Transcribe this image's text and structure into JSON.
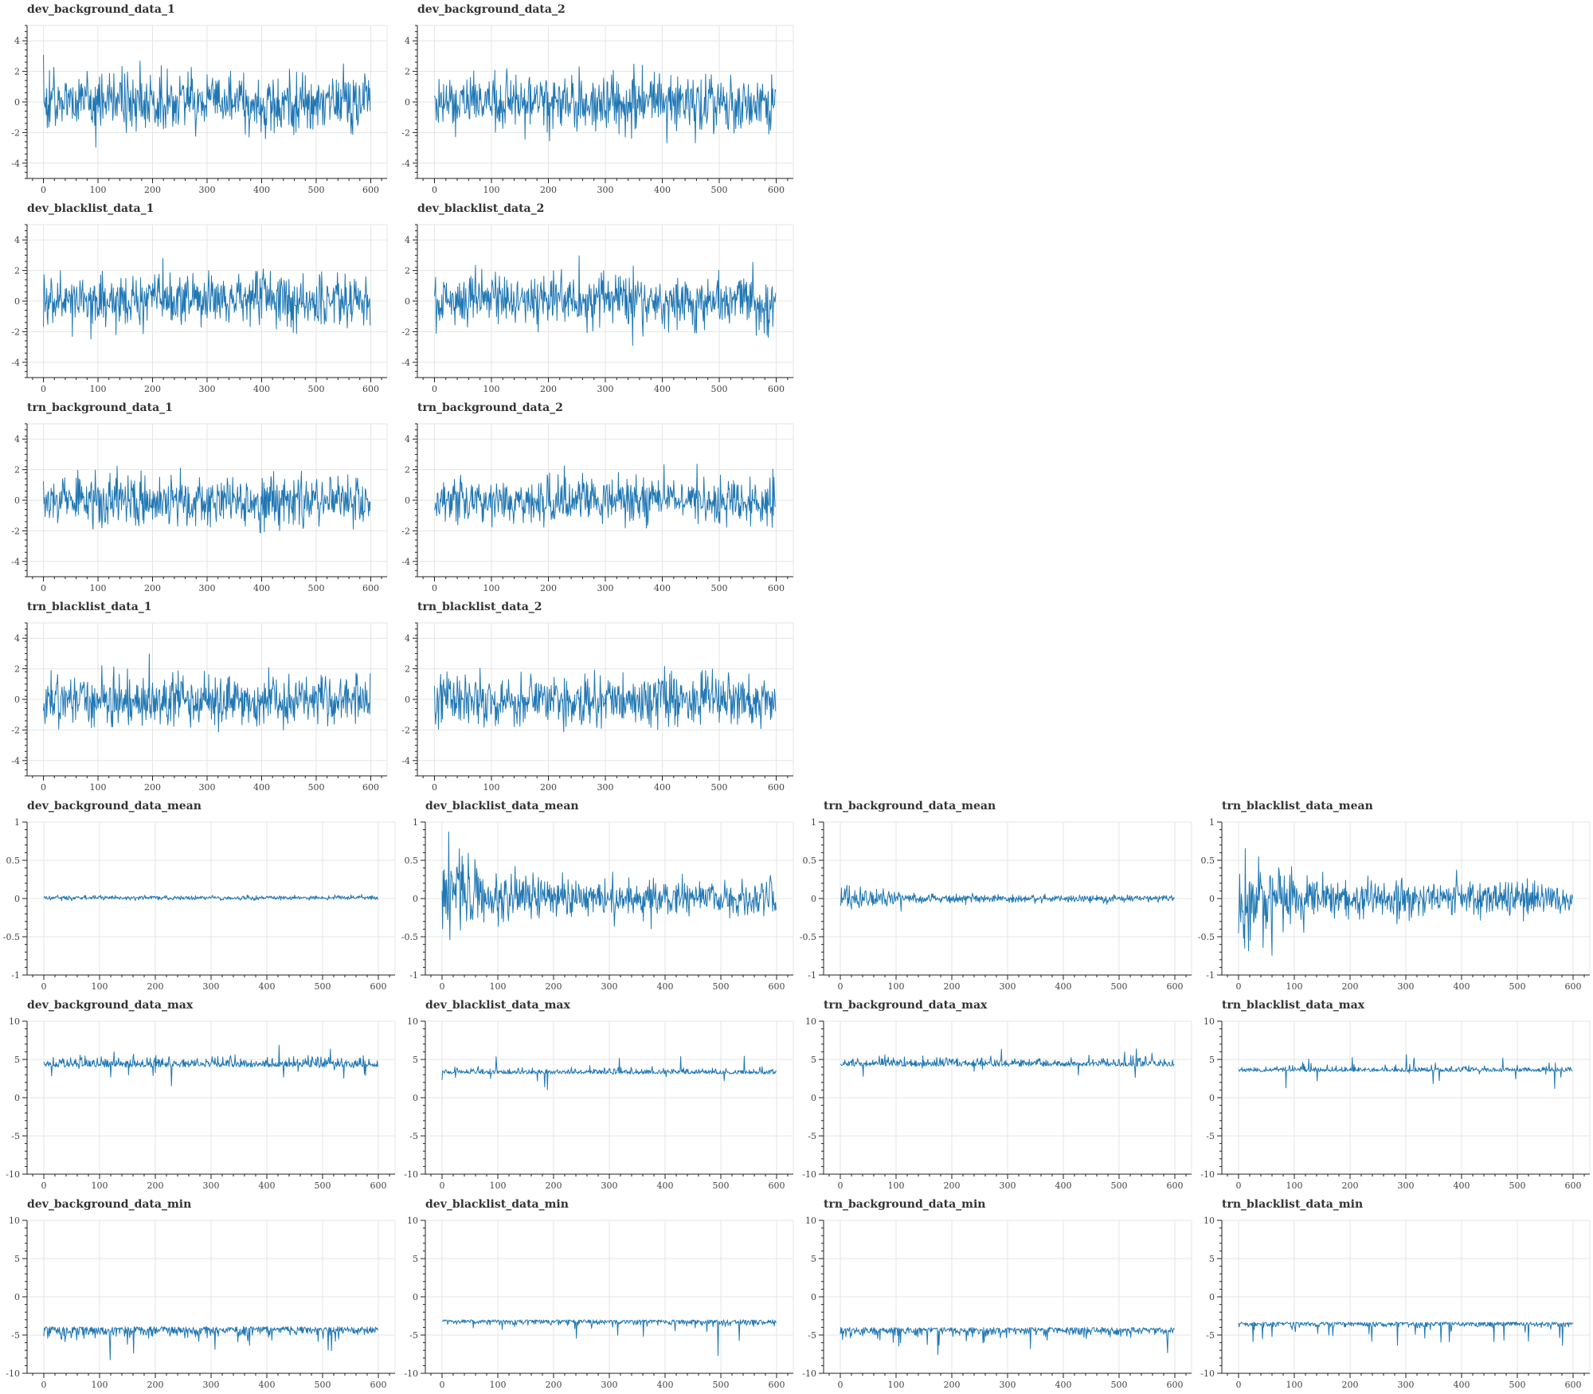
{
  "colors": {
    "series": "#1f77b4",
    "grid": "#e5e5e5",
    "axis": "#222222",
    "title": "#333333"
  },
  "chart_data": [
    {
      "id": "p0",
      "type": "line",
      "title": "dev_background_data_1",
      "xlim": [
        -30,
        630
      ],
      "ylim": [
        -5,
        5
      ],
      "xticks": [
        0,
        100,
        200,
        300,
        400,
        500,
        600
      ],
      "yticks": [
        -4,
        -2,
        0,
        2,
        4
      ],
      "generator": {
        "seed": 11,
        "base": 0,
        "sigma": 0.95,
        "n": 600
      },
      "grid": true
    },
    {
      "id": "p1",
      "type": "line",
      "title": "dev_background_data_2",
      "xlim": [
        -30,
        630
      ],
      "ylim": [
        -5,
        5
      ],
      "xticks": [
        0,
        100,
        200,
        300,
        400,
        500,
        600
      ],
      "yticks": [
        -4,
        -2,
        0,
        2,
        4
      ],
      "generator": {
        "seed": 12,
        "base": 0,
        "sigma": 0.9,
        "n": 600
      },
      "grid": true
    },
    {
      "id": "p2",
      "type": "line",
      "title": "dev_blacklist_data_1",
      "xlim": [
        -30,
        630
      ],
      "ylim": [
        -5,
        5
      ],
      "xticks": [
        0,
        100,
        200,
        300,
        400,
        500,
        600
      ],
      "yticks": [
        -4,
        -2,
        0,
        2,
        4
      ],
      "generator": {
        "seed": 13,
        "base": 0,
        "sigma": 0.85,
        "n": 600
      },
      "grid": true
    },
    {
      "id": "p3",
      "type": "line",
      "title": "dev_blacklist_data_2",
      "xlim": [
        -30,
        630
      ],
      "ylim": [
        -5,
        5
      ],
      "xticks": [
        0,
        100,
        200,
        300,
        400,
        500,
        600
      ],
      "yticks": [
        -4,
        -2,
        0,
        2,
        4
      ],
      "generator": {
        "seed": 14,
        "base": 0,
        "sigma": 0.85,
        "n": 600
      },
      "grid": true
    },
    {
      "id": "p4",
      "type": "line",
      "title": "trn_background_data_1",
      "xlim": [
        -30,
        630
      ],
      "ylim": [
        -5,
        5
      ],
      "xticks": [
        0,
        100,
        200,
        300,
        400,
        500,
        600
      ],
      "yticks": [
        -4,
        -2,
        0,
        2,
        4
      ],
      "generator": {
        "seed": 15,
        "base": 0,
        "sigma": 0.85,
        "n": 600
      },
      "grid": true
    },
    {
      "id": "p5",
      "type": "line",
      "title": "trn_background_data_2",
      "xlim": [
        -30,
        630
      ],
      "ylim": [
        -5,
        5
      ],
      "xticks": [
        0,
        100,
        200,
        300,
        400,
        500,
        600
      ],
      "yticks": [
        -4,
        -2,
        0,
        2,
        4
      ],
      "generator": {
        "seed": 16,
        "base": 0,
        "sigma": 0.75,
        "n": 600
      },
      "grid": true
    },
    {
      "id": "p6",
      "type": "line",
      "title": "trn_blacklist_data_1",
      "xlim": [
        -30,
        630
      ],
      "ylim": [
        -5,
        5
      ],
      "xticks": [
        0,
        100,
        200,
        300,
        400,
        500,
        600
      ],
      "yticks": [
        -4,
        -2,
        0,
        2,
        4
      ],
      "generator": {
        "seed": 17,
        "base": 0,
        "sigma": 0.85,
        "n": 600
      },
      "grid": true
    },
    {
      "id": "p7",
      "type": "line",
      "title": "trn_blacklist_data_2",
      "xlim": [
        -30,
        630
      ],
      "ylim": [
        -5,
        5
      ],
      "xticks": [
        0,
        100,
        200,
        300,
        400,
        500,
        600
      ],
      "yticks": [
        -4,
        -2,
        0,
        2,
        4
      ],
      "generator": {
        "seed": 18,
        "base": 0,
        "sigma": 0.85,
        "n": 600
      },
      "grid": true
    },
    {
      "id": "m0",
      "type": "line",
      "title": "dev_background_data_mean",
      "xlim": [
        -30,
        630
      ],
      "ylim": [
        -1,
        1
      ],
      "xticks": [
        0,
        100,
        200,
        300,
        400,
        500,
        600
      ],
      "yticks": [
        -1,
        -0.5,
        0,
        0.5,
        1
      ],
      "generator": {
        "seed": 21,
        "base": 0.01,
        "sigma": 0.015,
        "n": 600
      },
      "grid": true
    },
    {
      "id": "m1",
      "type": "line",
      "title": "dev_blacklist_data_mean",
      "xlim": [
        -30,
        630
      ],
      "ylim": [
        -1,
        1
      ],
      "xticks": [
        0,
        100,
        200,
        300,
        400,
        500,
        600
      ],
      "yticks": [
        -1,
        -0.5,
        0,
        0.5,
        1
      ],
      "generator": {
        "seed": 22,
        "base": 0,
        "sigma": 0.12,
        "decay": 0.3,
        "n": 600
      },
      "grid": true
    },
    {
      "id": "m2",
      "type": "line",
      "title": "trn_background_data_mean",
      "xlim": [
        -30,
        630
      ],
      "ylim": [
        -1,
        1
      ],
      "xticks": [
        0,
        100,
        200,
        300,
        400,
        500,
        600
      ],
      "yticks": [
        -1,
        -0.5,
        0,
        0.5,
        1
      ],
      "generator": {
        "seed": 23,
        "base": 0,
        "sigma": 0.025,
        "decay": 0.08,
        "n": 600
      },
      "grid": true
    },
    {
      "id": "m3",
      "type": "line",
      "title": "trn_blacklist_data_mean",
      "xlim": [
        -30,
        630
      ],
      "ylim": [
        -1,
        1
      ],
      "xticks": [
        0,
        100,
        200,
        300,
        400,
        500,
        600
      ],
      "yticks": [
        -1,
        -0.5,
        0,
        0.5,
        1
      ],
      "generator": {
        "seed": 24,
        "base": 0,
        "sigma": 0.11,
        "decay": 0.3,
        "n": 600
      },
      "grid": true
    },
    {
      "id": "x0",
      "type": "line",
      "title": "dev_background_data_max",
      "xlim": [
        -30,
        630
      ],
      "ylim": [
        -10,
        10
      ],
      "xticks": [
        0,
        100,
        200,
        300,
        400,
        500,
        600
      ],
      "yticks": [
        -10,
        -5,
        0,
        5,
        10
      ],
      "generator": {
        "seed": 31,
        "base": 4.0,
        "sigma": 0.55,
        "skew": 1,
        "n": 600
      },
      "grid": true
    },
    {
      "id": "x1",
      "type": "line",
      "title": "dev_blacklist_data_max",
      "xlim": [
        -30,
        630
      ],
      "ylim": [
        -10,
        10
      ],
      "xticks": [
        0,
        100,
        200,
        300,
        400,
        500,
        600
      ],
      "yticks": [
        -10,
        -5,
        0,
        5,
        10
      ],
      "generator": {
        "seed": 32,
        "base": 3.1,
        "sigma": 0.3,
        "skew": 1,
        "n": 600
      },
      "grid": true
    },
    {
      "id": "x2",
      "type": "line",
      "title": "trn_background_data_max",
      "xlim": [
        -30,
        630
      ],
      "ylim": [
        -10,
        10
      ],
      "xticks": [
        0,
        100,
        200,
        300,
        400,
        500,
        600
      ],
      "yticks": [
        -10,
        -5,
        0,
        5,
        10
      ],
      "generator": {
        "seed": 33,
        "base": 4.1,
        "sigma": 0.45,
        "skew": 1,
        "n": 600
      },
      "grid": true
    },
    {
      "id": "x3",
      "type": "line",
      "title": "trn_blacklist_data_max",
      "xlim": [
        -30,
        630
      ],
      "ylim": [
        -10,
        10
      ],
      "xticks": [
        0,
        100,
        200,
        300,
        400,
        500,
        600
      ],
      "yticks": [
        -10,
        -5,
        0,
        5,
        10
      ],
      "generator": {
        "seed": 34,
        "base": 3.4,
        "sigma": 0.3,
        "skew": 1,
        "n": 600
      },
      "grid": true
    },
    {
      "id": "n0",
      "type": "line",
      "title": "dev_background_data_min",
      "xlim": [
        -30,
        630
      ],
      "ylim": [
        -10,
        10
      ],
      "xticks": [
        0,
        100,
        200,
        300,
        400,
        500,
        600
      ],
      "yticks": [
        -10,
        -5,
        0,
        5,
        10
      ],
      "generator": {
        "seed": 41,
        "base": -3.9,
        "sigma": 0.55,
        "skew": -1,
        "n": 600
      },
      "grid": true
    },
    {
      "id": "n1",
      "type": "line",
      "title": "dev_blacklist_data_min",
      "xlim": [
        -30,
        630
      ],
      "ylim": [
        -10,
        10
      ],
      "xticks": [
        0,
        100,
        200,
        300,
        400,
        500,
        600
      ],
      "yticks": [
        -10,
        -5,
        0,
        5,
        10
      ],
      "generator": {
        "seed": 42,
        "base": -3.0,
        "sigma": 0.3,
        "skew": -1,
        "n": 600
      },
      "grid": true
    },
    {
      "id": "n2",
      "type": "line",
      "title": "trn_background_data_min",
      "xlim": [
        -30,
        630
      ],
      "ylim": [
        -10,
        10
      ],
      "xticks": [
        0,
        100,
        200,
        300,
        400,
        500,
        600
      ],
      "yticks": [
        -10,
        -5,
        0,
        5,
        10
      ],
      "generator": {
        "seed": 43,
        "base": -4.0,
        "sigma": 0.45,
        "skew": -1,
        "n": 600
      },
      "grid": true
    },
    {
      "id": "n3",
      "type": "line",
      "title": "trn_blacklist_data_min",
      "xlim": [
        -30,
        630
      ],
      "ylim": [
        -10,
        10
      ],
      "xticks": [
        0,
        100,
        200,
        300,
        400,
        500,
        600
      ],
      "yticks": [
        -10,
        -5,
        0,
        5,
        10
      ],
      "generator": {
        "seed": 44,
        "base": -3.3,
        "sigma": 0.3,
        "skew": -1,
        "n": 600
      },
      "grid": true
    }
  ]
}
